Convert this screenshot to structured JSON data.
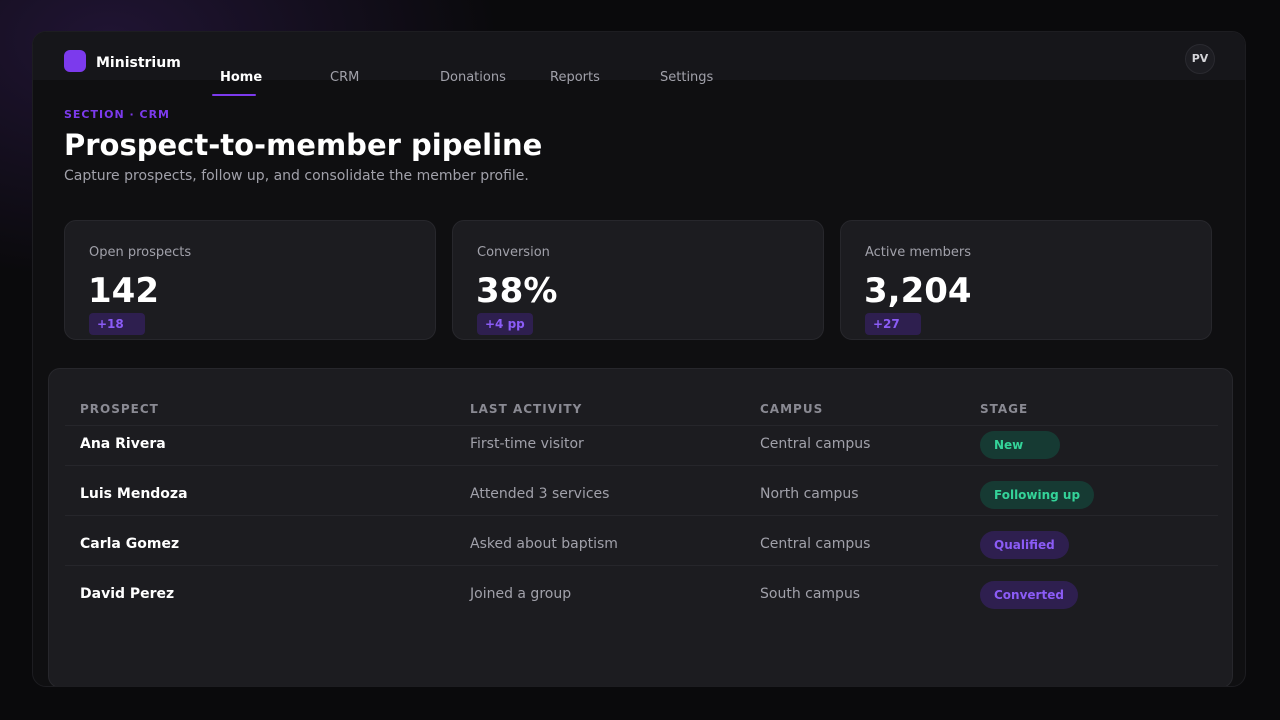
{
  "brand": {
    "name": "Ministrium"
  },
  "nav": {
    "items": [
      {
        "label": "Home",
        "active": true
      },
      {
        "label": "CRM",
        "active": false
      },
      {
        "label": "Donations",
        "active": false
      },
      {
        "label": "Reports",
        "active": false
      },
      {
        "label": "Settings",
        "active": false
      }
    ]
  },
  "user": {
    "initials": "PV"
  },
  "header": {
    "section": "SECTION · CRM",
    "title": "Prospect-to-member pipeline",
    "subtitle": "Capture prospects, follow up, and consolidate the member profile."
  },
  "kpis": [
    {
      "label": "Open prospects",
      "value": "142",
      "delta": "+18"
    },
    {
      "label": "Conversion",
      "value": "38%",
      "delta": "+4 pp"
    },
    {
      "label": "Active members",
      "value": "3,204",
      "delta": "+27"
    }
  ],
  "table": {
    "columns": [
      "PROSPECT",
      "LAST ACTIVITY",
      "CAMPUS",
      "STAGE"
    ],
    "rows": [
      {
        "prospect": "Ana Rivera",
        "activity": "First-time visitor",
        "campus": "Central campus",
        "stage": "New"
      },
      {
        "prospect": "Luis Mendoza",
        "activity": "Attended 3 services",
        "campus": "North campus",
        "stage": "Following up"
      },
      {
        "prospect": "Carla Gomez",
        "activity": "Asked about baptism",
        "campus": "Central campus",
        "stage": "Qualified"
      },
      {
        "prospect": "David Perez",
        "activity": "Joined a group",
        "campus": "South campus",
        "stage": "Converted"
      }
    ]
  },
  "colors": {
    "accent": "#7c3aed",
    "stage_green_bg": "#163a33",
    "stage_green_text": "#34d399",
    "stage_purple_bg": "#2e1f4f",
    "stage_purple_text": "#8b5cf6"
  }
}
